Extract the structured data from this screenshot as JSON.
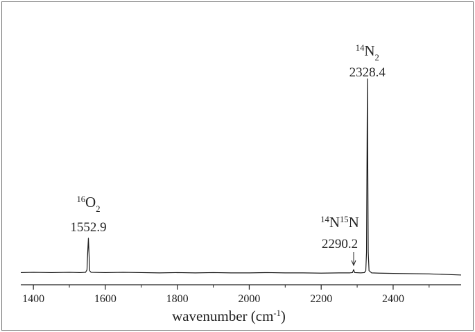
{
  "chart_data": {
    "type": "line",
    "xlabel": [
      {
        "text": "wavenumber (cm"
      },
      {
        "text": "-1",
        "pos": "sup"
      },
      {
        "text": ")"
      }
    ],
    "x": [
      1365,
      1400,
      1450,
      1500,
      1530,
      1545,
      1549,
      1551,
      1552.9,
      1554.5,
      1556.5,
      1560,
      1600,
      1650,
      1700,
      1750,
      1800,
      1850,
      1900,
      1950,
      2000,
      2050,
      2100,
      2150,
      2200,
      2250,
      2280,
      2287,
      2290.2,
      2293,
      2310,
      2320,
      2324,
      2326,
      2327.5,
      2328.4,
      2329.3,
      2330.8,
      2333,
      2340,
      2360,
      2400,
      2450,
      2500,
      2550,
      2589
    ],
    "values": [
      4.5,
      4.6,
      4.5,
      4.6,
      4.5,
      4.6,
      5.5,
      12,
      17.2,
      12,
      5.2,
      4.6,
      4.5,
      4.6,
      4.5,
      4.4,
      4.5,
      4.4,
      4.5,
      4.4,
      4.4,
      4.5,
      4.4,
      4.4,
      4.3,
      4.4,
      4.4,
      4.5,
      5.6,
      4.5,
      4.4,
      4.5,
      5.2,
      12,
      50,
      76,
      50,
      12,
      5.2,
      4.4,
      4.3,
      4.2,
      4.1,
      4.0,
      3.8,
      3.6
    ],
    "color": "#1a1a1a",
    "xlim": [
      1365,
      2589
    ],
    "ylim": [
      0,
      100
    ],
    "xticks": [
      1400,
      1600,
      1800,
      2000,
      2200,
      2400
    ],
    "xminorticks": [
      1500,
      1700,
      1900,
      2100,
      2300,
      2500
    ],
    "annotations": [
      {
        "label": [
          {
            "text": "16",
            "pos": "sup"
          },
          {
            "text": "O"
          },
          {
            "text": "2",
            "pos": "sub"
          }
        ],
        "value": 1552.9
      },
      {
        "label": [
          {
            "text": "14",
            "pos": "sup"
          },
          {
            "text": "N"
          },
          {
            "text": "15",
            "pos": "sup"
          },
          {
            "text": "N"
          }
        ],
        "value": 2290.2,
        "arrow": true
      },
      {
        "label": [
          {
            "text": "14",
            "pos": "sup"
          },
          {
            "text": "N"
          },
          {
            "text": "2",
            "pos": "sub"
          }
        ],
        "value": 2328.4
      }
    ]
  }
}
